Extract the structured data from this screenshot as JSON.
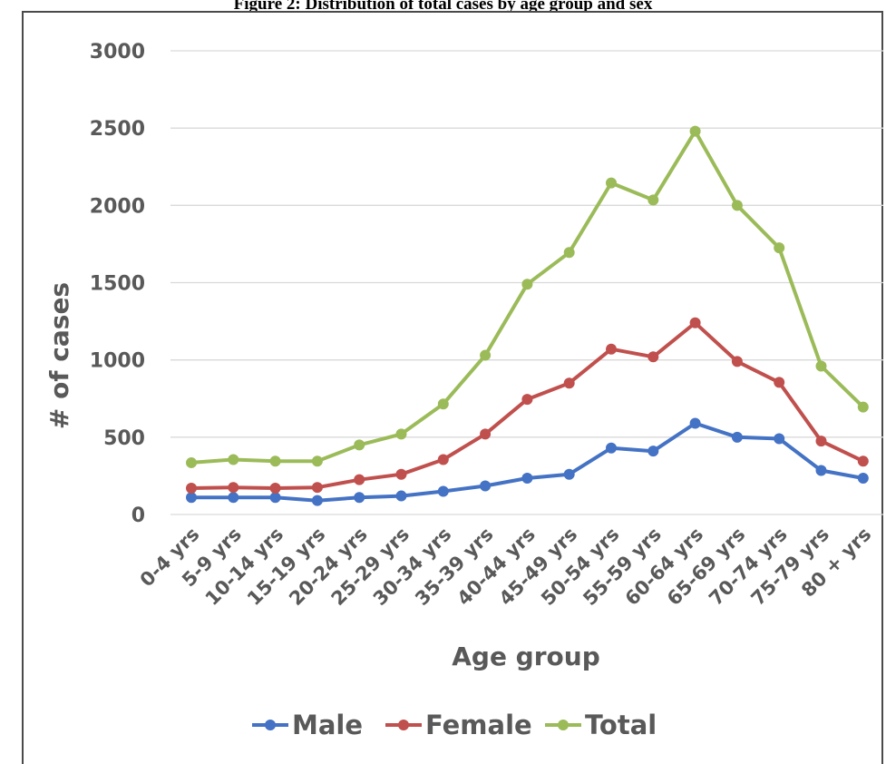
{
  "chart_data": {
    "type": "line",
    "title": "Figure 2: Distribution of total cases by age group and sex",
    "xlabel": "Age group",
    "ylabel": "# of cases",
    "ylim": [
      0,
      3000
    ],
    "yticks": [
      "0",
      "500",
      "1000",
      "1500",
      "2000",
      "2500",
      "3000"
    ],
    "grid": "horizontal",
    "legend_position": "bottom",
    "categories": [
      "0-4 yrs",
      "5-9 yrs",
      "10-14 yrs",
      "15-19 yrs",
      "20-24 yrs",
      "25-29 yrs",
      "30-34 yrs",
      "35-39 yrs",
      "40-44 yrs",
      "45-49 yrs",
      "50-54 yrs",
      "55-59 yrs",
      "60-64 yrs",
      "65-69 yrs",
      "70-74 yrs",
      "75-79 yrs",
      "80 + yrs"
    ],
    "series": [
      {
        "name": "Male",
        "color": "#4472c4",
        "values": [
          110,
          110,
          110,
          90,
          110,
          120,
          150,
          185,
          235,
          260,
          430,
          410,
          590,
          500,
          490,
          285,
          235
        ]
      },
      {
        "name": "Female",
        "color": "#c0504d",
        "values": [
          170,
          175,
          170,
          175,
          225,
          260,
          355,
          520,
          745,
          850,
          1070,
          1020,
          1240,
          990,
          855,
          475,
          345
        ]
      },
      {
        "name": "Total",
        "color": "#9bbb59",
        "values": [
          335,
          355,
          345,
          345,
          450,
          520,
          715,
          1030,
          1490,
          1695,
          2145,
          2035,
          2480,
          2000,
          1725,
          960,
          695
        ]
      }
    ]
  }
}
